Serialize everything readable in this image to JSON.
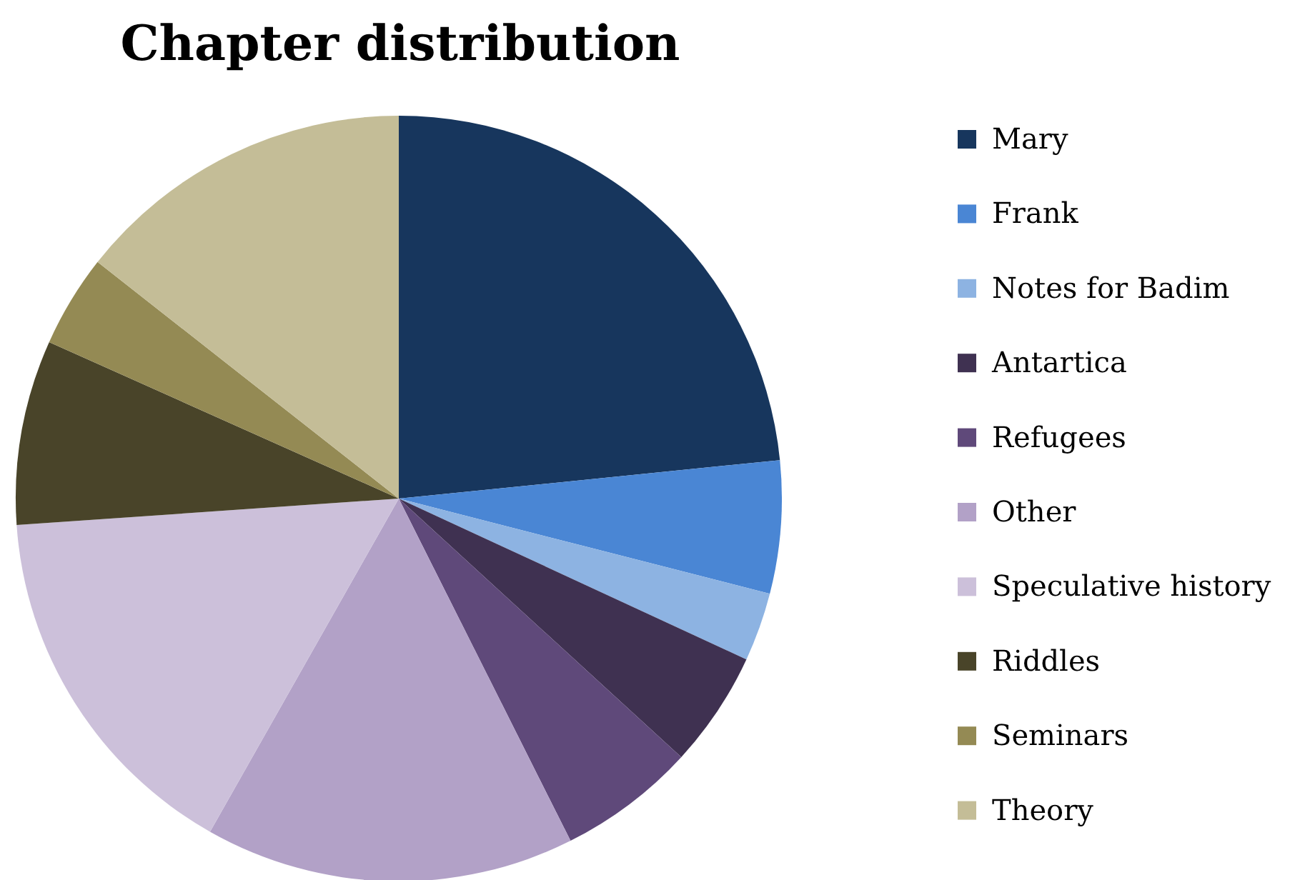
{
  "chart_data": {
    "type": "pie",
    "title": "Chapter distribution",
    "categories": [
      "Mary",
      "Frank",
      "Notes for Badim",
      "Antartica",
      "Refugees",
      "Other",
      "Speculative history",
      "Riddles",
      "Seminars",
      "Theory"
    ],
    "values": [
      23.4,
      5.6,
      2.9,
      4.9,
      5.8,
      15.6,
      15.7,
      7.8,
      3.9,
      14.4
    ],
    "colors": [
      "#17365d",
      "#4a86d4",
      "#8db3e2",
      "#3f3151",
      "#5f497a",
      "#b2a1c7",
      "#ccc0da",
      "#494429",
      "#948a54",
      "#c4bd97"
    ],
    "legend": "right"
  }
}
